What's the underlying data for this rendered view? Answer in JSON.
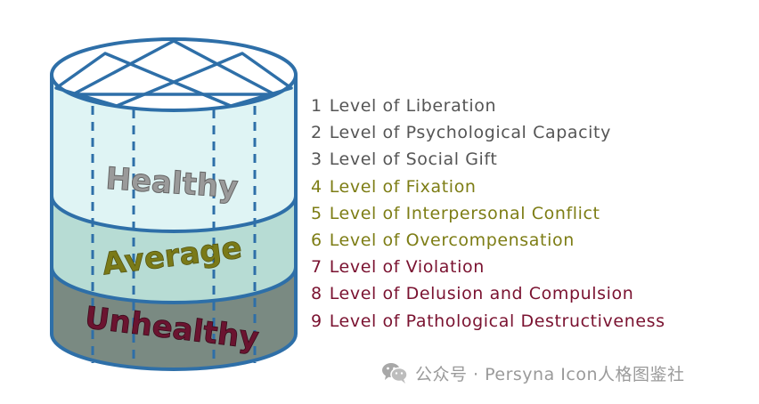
{
  "diagram": {
    "bands": [
      {
        "key": "healthy",
        "label": "Healthy",
        "fill": "#dff4f4",
        "text_color": "#9a9a9a"
      },
      {
        "key": "average",
        "label": "Average",
        "fill": "#b7dcd4",
        "text_color": "#7a7a18"
      },
      {
        "key": "unhealthy",
        "label": "Unhealthy",
        "fill": "#7a8a82",
        "text_color": "#6b1430"
      }
    ],
    "outline_color": "#2e6fa8",
    "levels": [
      {
        "num": "1",
        "text": "Level of Liberation",
        "color": "#555555"
      },
      {
        "num": "2",
        "text": "Level of Psychological Capacity",
        "color": "#555555"
      },
      {
        "num": "3",
        "text": "Level of Social Gift",
        "color": "#555555"
      },
      {
        "num": "4",
        "text": "Level of Fixation",
        "color": "#7d7d15"
      },
      {
        "num": "5",
        "text": "Level of Interpersonal Conflict",
        "color": "#7d7d15"
      },
      {
        "num": "6",
        "text": "Level of Overcompensation",
        "color": "#7d7d15"
      },
      {
        "num": "7",
        "text": "Level of Violation",
        "color": "#7a1230"
      },
      {
        "num": "8",
        "text": "Level of Delusion and Compulsion",
        "color": "#7a1230"
      },
      {
        "num": "9",
        "text": "Level of Pathological Destructiveness",
        "color": "#7a1230"
      }
    ]
  },
  "watermark": {
    "text": "公众号 · Persyna Icon人格图鉴社",
    "icon": "wechat-icon"
  }
}
